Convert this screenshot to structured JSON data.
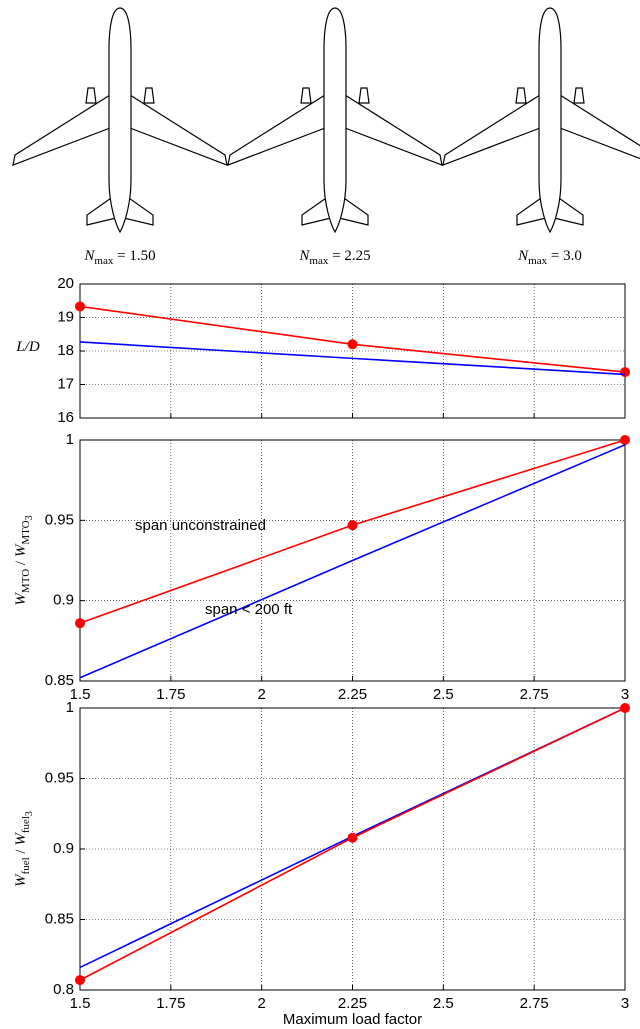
{
  "aircraft": [
    {
      "label": [
        {
          "text": "N",
          "style": "italic"
        },
        {
          "text": "max",
          "style": "sub"
        },
        {
          "text": " = 1.50",
          "style": "normal"
        }
      ]
    },
    {
      "label": [
        {
          "text": "N",
          "style": "italic"
        },
        {
          "text": "max",
          "style": "sub"
        },
        {
          "text": " = 2.25",
          "style": "normal"
        }
      ]
    },
    {
      "label": [
        {
          "text": "N",
          "style": "italic"
        },
        {
          "text": "max",
          "style": "sub"
        },
        {
          "text": " = 3.0",
          "style": "normal"
        }
      ]
    }
  ],
  "chart_data": [
    {
      "type": "line",
      "ylabel": [
        {
          "text": "L/D",
          "style": "italic"
        }
      ],
      "ylabel_rotated": false,
      "x": [
        1.5,
        2.25,
        3
      ],
      "xlim": [
        1.5,
        3
      ],
      "xticks": [
        1.5,
        1.75,
        2,
        2.25,
        2.5,
        2.75,
        3
      ],
      "xtick_labels": false,
      "ylim": [
        16,
        20
      ],
      "yticks": [
        16,
        17,
        18,
        19,
        20
      ],
      "grid": true,
      "series": [
        {
          "color": "#ff0000",
          "values": [
            19.33,
            18.2,
            17.37
          ],
          "markers": true
        },
        {
          "color": "#0000ff",
          "values": [
            18.27,
            17.78,
            17.3
          ],
          "markers": false
        }
      ]
    },
    {
      "type": "line",
      "ylabel": [
        {
          "text": "W",
          "style": "italic"
        },
        {
          "text": "MTO",
          "style": "sub"
        },
        {
          "text": " / ",
          "style": "normal"
        },
        {
          "text": "W",
          "style": "italic"
        },
        {
          "text": "MTO",
          "style": "sub"
        },
        {
          "text": "3",
          "style": "subsub"
        }
      ],
      "ylabel_rotated": true,
      "x": [
        1.5,
        2.25,
        3
      ],
      "xlim": [
        1.5,
        3
      ],
      "xticks": [
        1.5,
        1.75,
        2,
        2.25,
        2.5,
        2.75,
        3
      ],
      "xtick_labels": true,
      "ylim": [
        0.85,
        1
      ],
      "yticks": [
        0.85,
        0.9,
        0.95,
        1
      ],
      "grid": true,
      "annotations": [
        "span unconstrained",
        "span < 200 ft"
      ],
      "series": [
        {
          "color": "#ff0000",
          "values": [
            0.886,
            0.947,
            1.0
          ],
          "markers": true
        },
        {
          "color": "#0000ff",
          "values": [
            0.852,
            0.925,
            0.997
          ],
          "markers": false
        }
      ]
    },
    {
      "type": "line",
      "ylabel": [
        {
          "text": "W",
          "style": "italic"
        },
        {
          "text": "fuel",
          "style": "sub"
        },
        {
          "text": " / ",
          "style": "normal"
        },
        {
          "text": "W",
          "style": "italic"
        },
        {
          "text": "fuel",
          "style": "sub"
        },
        {
          "text": "3",
          "style": "subsub"
        }
      ],
      "ylabel_rotated": true,
      "xlabel": "Maximum load factor",
      "x": [
        1.5,
        2.25,
        3
      ],
      "xlim": [
        1.5,
        3
      ],
      "xticks": [
        1.5,
        1.75,
        2,
        2.25,
        2.5,
        2.75,
        3
      ],
      "xtick_labels": true,
      "ylim": [
        0.8,
        1
      ],
      "yticks": [
        0.8,
        0.85,
        0.9,
        0.95,
        1
      ],
      "grid": true,
      "series": [
        {
          "color": "#0000ff",
          "values": [
            0.816,
            0.909,
            1.0
          ],
          "markers": false
        },
        {
          "color": "#ff0000",
          "values": [
            0.807,
            0.908,
            1.0
          ],
          "markers": true
        }
      ]
    }
  ]
}
